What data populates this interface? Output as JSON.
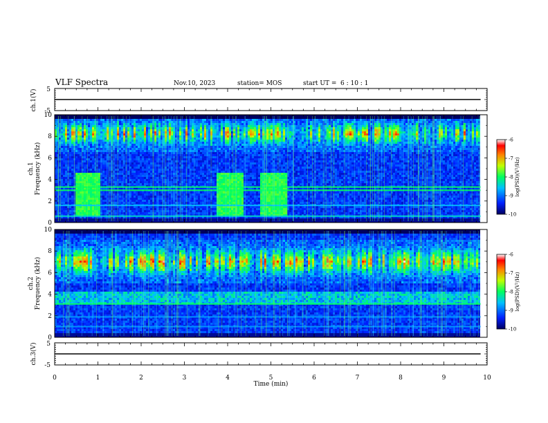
{
  "header": {
    "title": "VLF Spectra",
    "date": "Nov.10, 2023",
    "station": "station= MOS",
    "start_ut_label": "start  UT  =",
    "start_ut_value": "6  : 10 : 1"
  },
  "colors": {
    "background_dark": "#000010",
    "spectrogram_low": "#0000a0",
    "spectrogram_mid": "#00e0ff",
    "spectrogram_band": "#40ff40",
    "spectrogram_high": "#ff2000"
  },
  "chart_data": [
    {
      "id": "ch1-voltage",
      "type": "line",
      "ylabel": "ch.1(V)",
      "ylim": [
        -5,
        5
      ],
      "yticks": [
        "5",
        "-5"
      ],
      "x": [
        0,
        9.85
      ],
      "values": [
        0,
        0
      ]
    },
    {
      "id": "ch1-spectrogram",
      "type": "heatmap",
      "ylabel_top": "ch.1",
      "ylabel": "Frequency (kHz)",
      "ylim": [
        0,
        10
      ],
      "yticks": [
        "0",
        "2",
        "4",
        "6",
        "8",
        "10"
      ],
      "xlim": [
        0,
        10
      ],
      "data_extent_min": 9.85,
      "colorbar": {
        "label": "log(PSD)(V²/Hz)",
        "ticks": [
          "-6",
          "-7",
          "-8",
          "-9",
          "-10"
        ],
        "range": [
          -10,
          -6
        ]
      },
      "bands_khz": [
        {
          "freq": 3.0,
          "level": -8.0
        },
        {
          "freq": 3.3,
          "level": -8.0
        },
        {
          "freq": 1.6,
          "level": -8.6
        },
        {
          "freq": 0.6,
          "level": -8.4
        }
      ],
      "broadband_blocks_min": [
        [
          0.45,
          1.05
        ],
        [
          3.7,
          4.35
        ],
        [
          4.75,
          5.35
        ]
      ],
      "chorus_band_khz": [
        7.0,
        9.5
      ]
    },
    {
      "id": "ch2-spectrogram",
      "type": "heatmap",
      "ylabel_top": "ch.2",
      "ylabel": "Frequency (kHz)",
      "ylim": [
        0,
        10
      ],
      "yticks": [
        "0",
        "2",
        "4",
        "6",
        "8",
        "10"
      ],
      "xlim": [
        0,
        10
      ],
      "data_extent_min": 9.85,
      "colorbar": {
        "label": "log(PSD)(V²/Hz)",
        "ticks": [
          "-6",
          "-7",
          "-8",
          "-9",
          "-10"
        ],
        "range": [
          -10,
          -6
        ]
      },
      "bands_khz": [
        {
          "freq": 3.1,
          "level": -8.0
        },
        {
          "freq": 1.9,
          "level": -8.8
        },
        {
          "freq": 1.0,
          "level": -8.8
        }
      ],
      "chorus_band_khz": [
        5.5,
        8.5
      ]
    },
    {
      "id": "ch3-voltage",
      "type": "line",
      "ylabel": "ch.3(V)",
      "ylim": [
        -5,
        5
      ],
      "yticks": [
        "5",
        "-5"
      ],
      "x": [
        0,
        9.85
      ],
      "values": [
        0,
        0
      ]
    }
  ],
  "xaxis": {
    "label": "Time (min)",
    "ticks": [
      "0",
      "1",
      "2",
      "3",
      "4",
      "5",
      "6",
      "7",
      "8",
      "9",
      "10"
    ],
    "range": [
      0,
      10
    ]
  }
}
